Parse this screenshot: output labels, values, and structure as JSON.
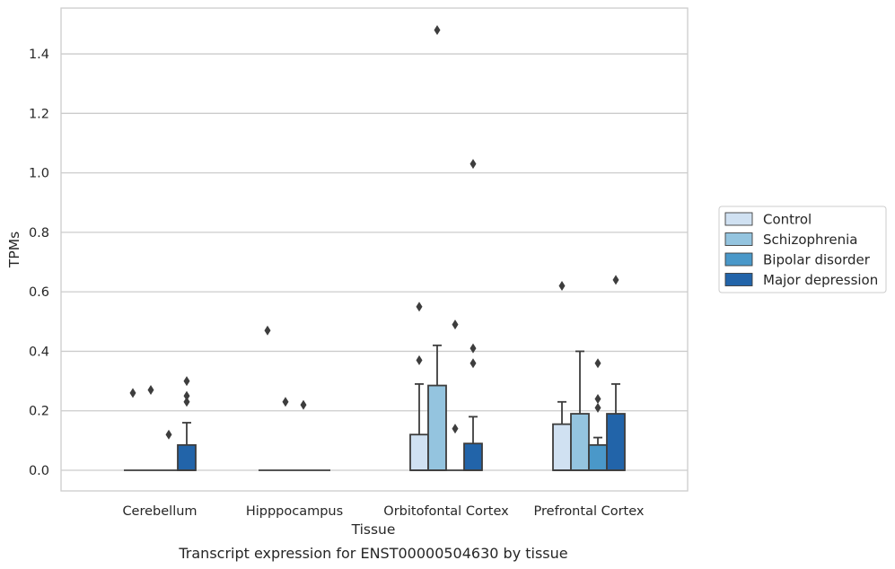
{
  "caption": "Transcript expression for ENST00000504630 by tissue",
  "chart_data": {
    "type": "box",
    "xlabel": "Tissue",
    "ylabel": "TPMs",
    "ylim": [
      -0.07,
      1.56
    ],
    "yticks": [
      "0.0",
      "0.2",
      "0.4",
      "0.6",
      "0.8",
      "1.0",
      "1.2",
      "1.4"
    ],
    "grid": "horizontal",
    "legend_position": "right",
    "categories": [
      "Cerebellum",
      "Hipppocampus",
      "Orbitofontal Cortex",
      "Prefrontal Cortex"
    ],
    "series": [
      {
        "name": "Control",
        "color": "#d0e1f2",
        "boxes": [
          {
            "q1": 0,
            "median": 0,
            "q3": 0,
            "whisker_low": 0,
            "whisker_high": 0,
            "outliers": [
              0.26
            ]
          },
          {
            "q1": 0,
            "median": 0,
            "q3": 0,
            "whisker_low": 0,
            "whisker_high": 0,
            "outliers": [
              0.47
            ]
          },
          {
            "q1": 0,
            "median": 0,
            "q3": 0.12,
            "whisker_low": 0,
            "whisker_high": 0.29,
            "outliers": [
              0.37,
              0.55
            ]
          },
          {
            "q1": 0,
            "median": 0,
            "q3": 0.155,
            "whisker_low": 0,
            "whisker_high": 0.23,
            "outliers": [
              0.62
            ]
          }
        ]
      },
      {
        "name": "Schizophrenia",
        "color": "#94c4df",
        "boxes": [
          {
            "q1": 0,
            "median": 0,
            "q3": 0,
            "whisker_low": 0,
            "whisker_high": 0,
            "outliers": [
              0.27
            ]
          },
          {
            "q1": 0,
            "median": 0,
            "q3": 0,
            "whisker_low": 0,
            "whisker_high": 0,
            "outliers": [
              0.23
            ]
          },
          {
            "q1": 0,
            "median": 0,
            "q3": 0.285,
            "whisker_low": 0,
            "whisker_high": 0.42,
            "outliers": [
              1.48
            ]
          },
          {
            "q1": 0,
            "median": 0,
            "q3": 0.19,
            "whisker_low": 0,
            "whisker_high": 0.4,
            "outliers": []
          }
        ]
      },
      {
        "name": "Bipolar disorder",
        "color": "#4a98c9",
        "boxes": [
          {
            "q1": 0,
            "median": 0,
            "q3": 0,
            "whisker_low": 0,
            "whisker_high": 0,
            "outliers": [
              0.12
            ]
          },
          {
            "q1": 0,
            "median": 0,
            "q3": 0,
            "whisker_low": 0,
            "whisker_high": 0,
            "outliers": [
              0.22
            ]
          },
          {
            "q1": 0,
            "median": 0,
            "q3": 0,
            "whisker_low": 0,
            "whisker_high": 0,
            "outliers": [
              0.14,
              0.49
            ]
          },
          {
            "q1": 0,
            "median": 0,
            "q3": 0.085,
            "whisker_low": 0,
            "whisker_high": 0.11,
            "outliers": [
              0.21,
              0.24,
              0.36
            ]
          }
        ]
      },
      {
        "name": "Major depression",
        "color": "#2264a9",
        "boxes": [
          {
            "q1": 0,
            "median": 0,
            "q3": 0.085,
            "whisker_low": 0,
            "whisker_high": 0.16,
            "outliers": [
              0.23,
              0.25,
              0.3
            ]
          },
          {
            "q1": 0,
            "median": 0,
            "q3": 0,
            "whisker_low": 0,
            "whisker_high": 0,
            "outliers": []
          },
          {
            "q1": 0,
            "median": 0,
            "q3": 0.09,
            "whisker_low": 0,
            "whisker_high": 0.18,
            "outliers": [
              0.36,
              0.41,
              1.03
            ]
          },
          {
            "q1": 0,
            "median": 0,
            "q3": 0.19,
            "whisker_low": 0,
            "whisker_high": 0.29,
            "outliers": [
              0.64
            ]
          }
        ]
      }
    ]
  }
}
